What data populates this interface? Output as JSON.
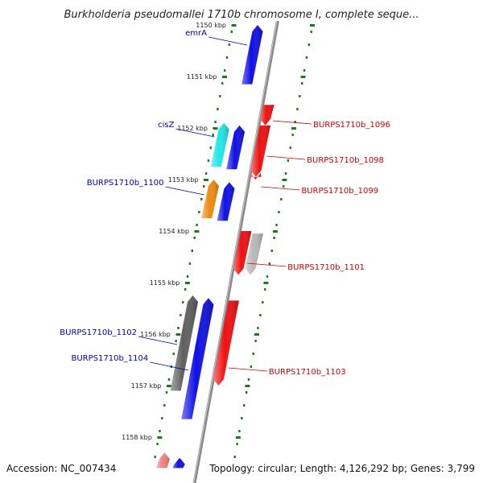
{
  "title": "Burkholderia pseudomallei 1710b chromosome I, complete seque...",
  "footer": {
    "accession": "Accession: NC_007434",
    "summary": "Topology: circular; Length: 4,126,292 bp; Genes: 3,799"
  },
  "ticks": [
    {
      "label": "1150 kbp",
      "kbp": 1150
    },
    {
      "label": "1151 kbp",
      "kbp": 1151
    },
    {
      "label": "1152 kbp",
      "kbp": 1152
    },
    {
      "label": "1153 kbp",
      "kbp": 1153
    },
    {
      "label": "1154 kbp",
      "kbp": 1154
    },
    {
      "label": "1155 kbp",
      "kbp": 1155
    },
    {
      "label": "1156 kbp",
      "kbp": 1156
    },
    {
      "label": "1157 kbp",
      "kbp": 1157
    },
    {
      "label": "1158 kbp",
      "kbp": 1158
    }
  ],
  "genes": {
    "forward": [
      {
        "label": "emrA",
        "start": 1150.0,
        "end": 1151.15,
        "color": "#1010e8",
        "labelled": true
      },
      {
        "label": "cisZ",
        "start": 1151.9,
        "end": 1152.75,
        "color": "#20e8e8",
        "labelled": true
      },
      {
        "label": "",
        "start": 1151.95,
        "end": 1152.8,
        "color": "#1010e8",
        "labelled": false
      },
      {
        "label": "BURPS1710b_1100",
        "start": 1153.0,
        "end": 1153.75,
        "color": "#f08a10",
        "labelled": true
      },
      {
        "label": "",
        "start": 1153.05,
        "end": 1153.8,
        "color": "#1010e8",
        "labelled": false
      },
      {
        "label": "BURPS1710b_1102",
        "start": 1155.25,
        "end": 1157.1,
        "color": "#606060",
        "labelled": true
      },
      {
        "label": "BURPS1710b_1104",
        "start": 1155.3,
        "end": 1157.65,
        "color": "#1010e8",
        "labelled": true
      },
      {
        "label": "",
        "start": 1158.3,
        "end": 1158.6,
        "color": "#f08080",
        "labelled": false
      },
      {
        "label": "",
        "start": 1158.4,
        "end": 1158.6,
        "color": "#1010e8",
        "labelled": false
      }
    ],
    "reverse": [
      {
        "label": "BURPS1710b_1096",
        "start": 1151.55,
        "end": 1151.95,
        "color": "#f01010",
        "labelled": true
      },
      {
        "label": "BURPS1710b_1098",
        "start": 1151.95,
        "end": 1152.95,
        "color": "#f01010",
        "labelled": true
      },
      {
        "label": "BURPS1710b_1099",
        "start": 1152.95,
        "end": 1153.0,
        "color": "#f01010",
        "labelled": true
      },
      {
        "label": "BURPS1710b_1101",
        "start": 1154.0,
        "end": 1154.85,
        "color": "#f01010",
        "labelled": true
      },
      {
        "label": "",
        "start": 1154.05,
        "end": 1154.85,
        "color": "#b8b8b8",
        "labelled": false
      },
      {
        "label": "BURPS1710b_1103",
        "start": 1155.35,
        "end": 1157.0,
        "color": "#f01010",
        "labelled": true
      }
    ]
  },
  "colors": {
    "forward_label": "#0000b0",
    "reverse_label": "#cc0000",
    "backbone": "#8a8a8a",
    "tick_dot": "#1a7a1a"
  }
}
